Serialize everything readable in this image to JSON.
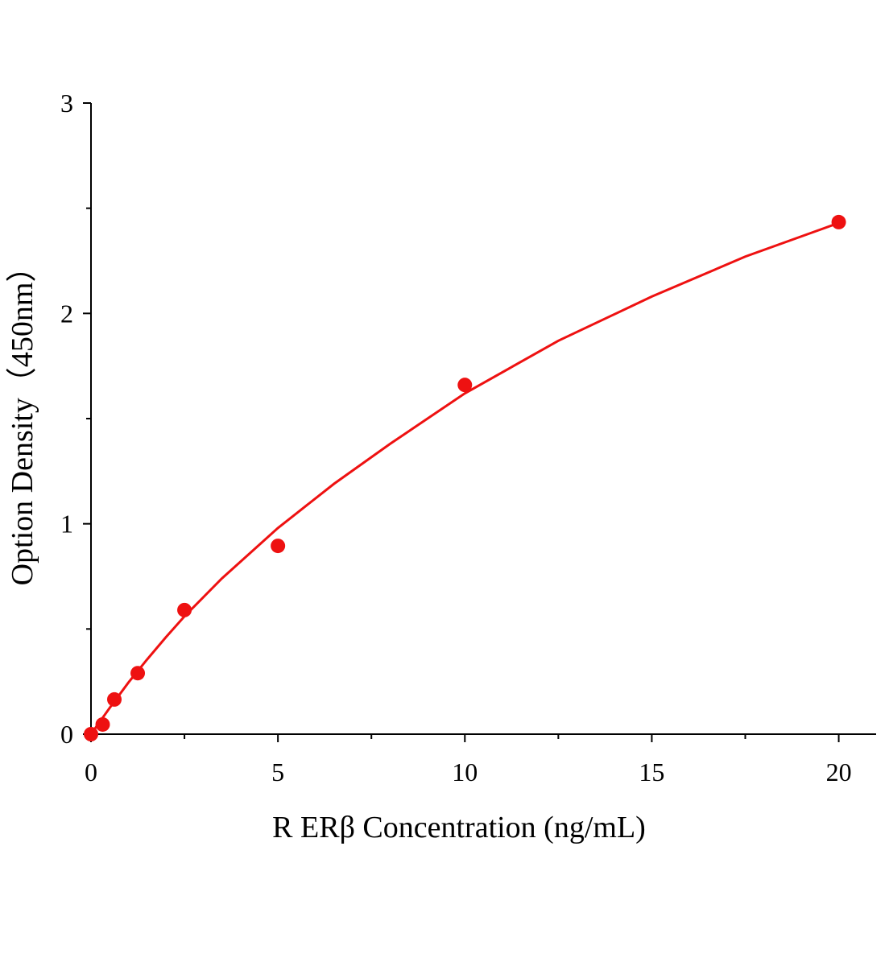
{
  "chart_data": {
    "type": "scatter",
    "x_label": "R ERβ Concentration (ng/mL)",
    "y_label": "Option Density（450nm）",
    "x": [
      0,
      0.3125,
      0.625,
      1.25,
      2.5,
      5,
      10,
      20
    ],
    "values": [
      0,
      0.046,
      0.165,
      0.29,
      0.59,
      0.895,
      1.66,
      2.434
    ],
    "color": "#ee1111",
    "curve": {
      "x": [
        0,
        0.5,
        1,
        1.5,
        2,
        2.5,
        3.5,
        5,
        6.5,
        8,
        10,
        12.5,
        15,
        17.5,
        20
      ],
      "values": [
        0,
        0.125,
        0.245,
        0.355,
        0.46,
        0.56,
        0.74,
        0.98,
        1.19,
        1.38,
        1.62,
        1.87,
        2.08,
        2.27,
        2.43
      ],
      "color": "#ee1111"
    },
    "xlim": [
      0,
      21
    ],
    "ylim": [
      0,
      3
    ],
    "xticks": [
      0,
      5,
      10,
      15,
      20
    ],
    "yticks": [
      0,
      1,
      2,
      3
    ],
    "xminorticks": [
      2.5,
      7.5,
      12.5,
      17.5
    ],
    "yminorticks": [
      0.5,
      1.5,
      2.5
    ]
  }
}
